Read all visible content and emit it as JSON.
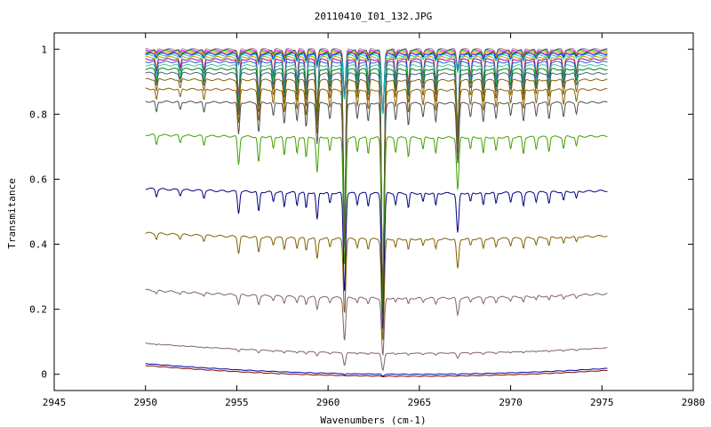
{
  "chart_data": {
    "type": "line",
    "title": "20110410_I01_132.JPG",
    "xlabel": "Wavenumbers (cm-1)",
    "ylabel": "Transmitance",
    "xlim": [
      2945,
      2980
    ],
    "ylim": [
      -0.05,
      1.05
    ],
    "xticks": [
      2945,
      2950,
      2955,
      2960,
      2965,
      2970,
      2975,
      2980
    ],
    "yticks": [
      0,
      0.2,
      0.4,
      0.6,
      0.8,
      1
    ],
    "ytick_labels": [
      "0",
      "0.2",
      "0.4",
      "0.6",
      "0.8",
      "1"
    ],
    "grid": false,
    "legend": "none",
    "x_range_data": [
      2950,
      2975.3
    ],
    "absorption_lines": [
      {
        "x": 2950.6,
        "depth": 0.04,
        "width": 0.07
      },
      {
        "x": 2951.9,
        "depth": 0.03,
        "width": 0.07
      },
      {
        "x": 2953.2,
        "depth": 0.04,
        "width": 0.07
      },
      {
        "x": 2955.1,
        "depth": 0.12,
        "width": 0.08
      },
      {
        "x": 2956.2,
        "depth": 0.11,
        "width": 0.08
      },
      {
        "x": 2957.0,
        "depth": 0.05,
        "width": 0.07
      },
      {
        "x": 2957.6,
        "depth": 0.08,
        "width": 0.07
      },
      {
        "x": 2958.3,
        "depth": 0.07,
        "width": 0.07
      },
      {
        "x": 2958.8,
        "depth": 0.09,
        "width": 0.07
      },
      {
        "x": 2959.4,
        "depth": 0.15,
        "width": 0.08
      },
      {
        "x": 2960.1,
        "depth": 0.06,
        "width": 0.07
      },
      {
        "x": 2960.9,
        "depth": 0.55,
        "width": 0.09
      },
      {
        "x": 2961.6,
        "depth": 0.06,
        "width": 0.07
      },
      {
        "x": 2962.2,
        "depth": 0.07,
        "width": 0.07
      },
      {
        "x": 2963.0,
        "depth": 0.75,
        "width": 0.1
      },
      {
        "x": 2963.7,
        "depth": 0.06,
        "width": 0.07
      },
      {
        "x": 2964.4,
        "depth": 0.08,
        "width": 0.07
      },
      {
        "x": 2965.2,
        "depth": 0.05,
        "width": 0.07
      },
      {
        "x": 2965.9,
        "depth": 0.07,
        "width": 0.07
      },
      {
        "x": 2967.1,
        "depth": 0.22,
        "width": 0.09
      },
      {
        "x": 2967.8,
        "depth": 0.05,
        "width": 0.07
      },
      {
        "x": 2968.5,
        "depth": 0.07,
        "width": 0.07
      },
      {
        "x": 2969.2,
        "depth": 0.06,
        "width": 0.07
      },
      {
        "x": 2970.0,
        "depth": 0.05,
        "width": 0.07
      },
      {
        "x": 2970.7,
        "depth": 0.07,
        "width": 0.07
      },
      {
        "x": 2971.4,
        "depth": 0.05,
        "width": 0.07
      },
      {
        "x": 2972.1,
        "depth": 0.06,
        "width": 0.07
      },
      {
        "x": 2972.9,
        "depth": 0.05,
        "width": 0.07
      },
      {
        "x": 2973.6,
        "depth": 0.04,
        "width": 0.07
      }
    ],
    "series": [
      {
        "baseline": 1.0,
        "color": "#a0a0a0"
      },
      {
        "baseline": 0.997,
        "color": "#ff00ff"
      },
      {
        "baseline": 0.994,
        "color": "#00aa00"
      },
      {
        "baseline": 0.99,
        "color": "#ff8000"
      },
      {
        "baseline": 0.986,
        "color": "#0000ff"
      },
      {
        "baseline": 0.981,
        "color": "#00c0c0"
      },
      {
        "baseline": 0.975,
        "color": "#c0a000"
      },
      {
        "baseline": 0.968,
        "color": "#a000a0"
      },
      {
        "baseline": 0.96,
        "color": "#3060c0"
      },
      {
        "baseline": 0.95,
        "color": "#40c0a0"
      },
      {
        "baseline": 0.938,
        "color": "#008000"
      },
      {
        "baseline": 0.925,
        "color": "#406080"
      },
      {
        "baseline": 0.905,
        "color": "#886000"
      },
      {
        "baseline": 0.875,
        "color": "#886000"
      },
      {
        "baseline": 0.835,
        "color": "#505050"
      },
      {
        "baseline": 0.73,
        "color": "#40a000"
      },
      {
        "baseline": 0.56,
        "color": "#000080"
      },
      {
        "baseline": 0.42,
        "color": "#806000"
      },
      {
        "baseline": 0.24,
        "color": "#806070"
      },
      {
        "baseline": 0.072,
        "color": "#806070"
      },
      {
        "baseline": 0.008,
        "color": "#0000a0"
      },
      {
        "baseline": 0.002,
        "color": "#800000"
      }
    ]
  }
}
